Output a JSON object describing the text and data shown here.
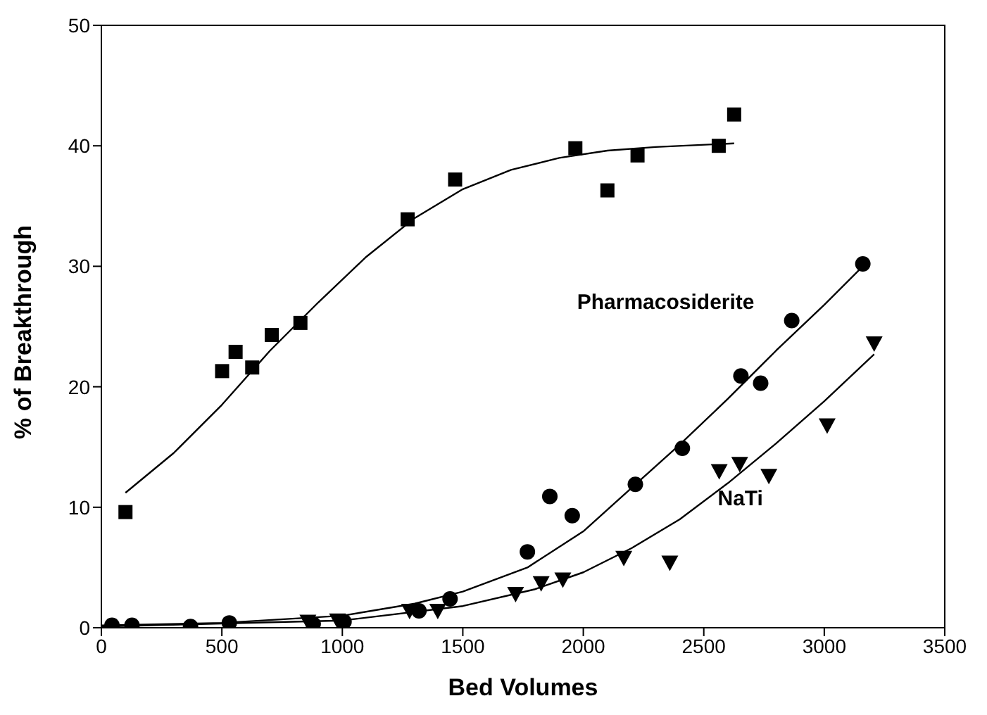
{
  "chart_data": {
    "type": "scatter",
    "xlabel": "Bed Volumes",
    "ylabel": "% of Breakthrough",
    "xlim": [
      0,
      3500
    ],
    "xticks": [
      0,
      500,
      1000,
      1500,
      2000,
      2500,
      3000,
      3500
    ],
    "ylim": [
      0,
      50
    ],
    "yticks": [
      0,
      10,
      20,
      30,
      40,
      50
    ],
    "legend": false,
    "series": [
      {
        "color": "#000000",
        "marker": "square",
        "x": [
          100,
          501,
          557,
          626,
          707,
          826,
          1271,
          1468,
          1967,
          2100,
          2225,
          2562,
          2626
        ],
        "values": [
          9.6,
          21.3,
          22.9,
          21.6,
          24.3,
          25.3,
          33.9,
          37.2,
          39.8,
          36.3,
          39.2,
          40.0,
          42.6
        ]
      },
      {
        "name": "Pharmacosiderite",
        "color": "#000000",
        "marker": "circle",
        "x": [
          44,
          127,
          370,
          531,
          879,
          1007,
          1318,
          1447,
          1768,
          1861,
          1954,
          2216,
          2411,
          2654,
          2736,
          2865,
          3160
        ],
        "values": [
          0.2,
          0.2,
          0.1,
          0.4,
          0.3,
          0.5,
          1.4,
          2.4,
          6.3,
          10.9,
          9.3,
          11.9,
          14.9,
          20.9,
          20.3,
          25.5,
          30.2
        ]
      },
      {
        "name": "NaTi",
        "color": "#000000",
        "marker": "triangle",
        "x": [
          857,
          980,
          1279,
          1396,
          1719,
          1825,
          1915,
          2168,
          2359,
          2564,
          2649,
          2770,
          3012,
          3207
        ],
        "values": [
          0.5,
          0.6,
          1.4,
          1.4,
          2.8,
          3.7,
          4.0,
          5.8,
          5.4,
          13.0,
          13.6,
          12.6,
          16.8,
          23.6
        ]
      },
      {
        "type": "line",
        "color": "#000000",
        "marker": "none",
        "x": [
          100,
          300,
          500,
          700,
          900,
          1100,
          1300,
          1500,
          1700,
          1900,
          2100,
          2300,
          2626
        ],
        "values": [
          11.2,
          14.5,
          18.5,
          23,
          27,
          30.8,
          34,
          36.4,
          38,
          39,
          39.6,
          39.9,
          40.2
        ]
      },
      {
        "type": "line",
        "color": "#000000",
        "marker": "none",
        "x": [
          0,
          500,
          1000,
          1300,
          1500,
          1768,
          2000,
          2200,
          2400,
          2600,
          2800,
          3000,
          3160
        ],
        "values": [
          0.2,
          0.4,
          1.0,
          2.0,
          3.0,
          5.0,
          8.0,
          11.6,
          15.2,
          19.0,
          23.0,
          26.8,
          30.0
        ]
      },
      {
        "type": "line",
        "color": "#000000",
        "marker": "none",
        "x": [
          0,
          1000,
          1500,
          1800,
          2000,
          2200,
          2400,
          2600,
          2800,
          3000,
          3207
        ],
        "values": [
          0.1,
          0.6,
          1.8,
          3.2,
          4.6,
          6.6,
          9.0,
          12.0,
          15.3,
          18.8,
          22.7
        ]
      }
    ]
  }
}
